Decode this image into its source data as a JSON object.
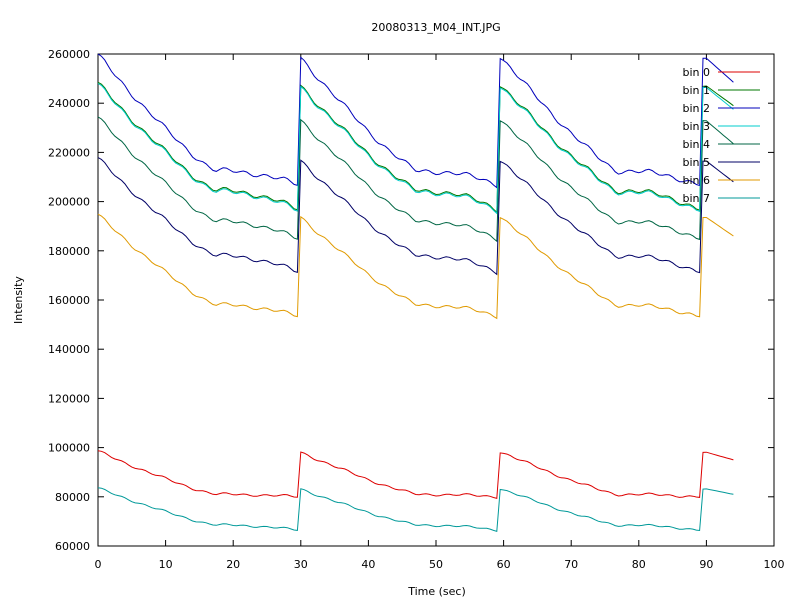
{
  "chart_data": {
    "type": "line",
    "title": "20080313_M04_INT.JPG",
    "xlabel": "Time (sec)",
    "ylabel": "Intensity",
    "xlim": [
      0,
      100
    ],
    "ylim": [
      60000,
      260000
    ],
    "xticks": [
      0,
      10,
      20,
      30,
      40,
      50,
      60,
      70,
      80,
      90,
      100
    ],
    "yticks": [
      60000,
      80000,
      100000,
      120000,
      140000,
      160000,
      180000,
      200000,
      220000,
      240000,
      260000
    ],
    "grid": false,
    "legend_position": "top-right",
    "series": [
      {
        "name": "bin 0",
        "color": "#dd0000",
        "start": 98500,
        "end": 80000,
        "plateau": 81000,
        "last": 95000,
        "wobble": 600
      },
      {
        "name": "bin 1",
        "color": "#007700",
        "start": 248000,
        "end": 197000,
        "plateau": 204500,
        "last": 239000,
        "wobble": 1200
      },
      {
        "name": "bin 2",
        "color": "#0000bb",
        "start": 259500,
        "end": 207000,
        "plateau": 212500,
        "last": 248500,
        "wobble": 1200
      },
      {
        "name": "bin 3",
        "color": "#00cccc",
        "start": 247500,
        "end": 196500,
        "plateau": 204000,
        "last": 237500,
        "wobble": 1200
      },
      {
        "name": "bin 4",
        "color": "#006644",
        "start": 234000,
        "end": 185000,
        "plateau": 192000,
        "last": 223500,
        "wobble": 1000
      },
      {
        "name": "bin 5",
        "color": "#000066",
        "start": 217500,
        "end": 171500,
        "plateau": 178000,
        "last": 208000,
        "wobble": 1000
      },
      {
        "name": "bin 6",
        "color": "#e09a00",
        "start": 194500,
        "end": 153500,
        "plateau": 158000,
        "last": 186000,
        "wobble": 900
      },
      {
        "name": "bin 7",
        "color": "#009999",
        "start": 83500,
        "end": 66500,
        "plateau": 68500,
        "last": 81000,
        "wobble": 500
      }
    ]
  }
}
